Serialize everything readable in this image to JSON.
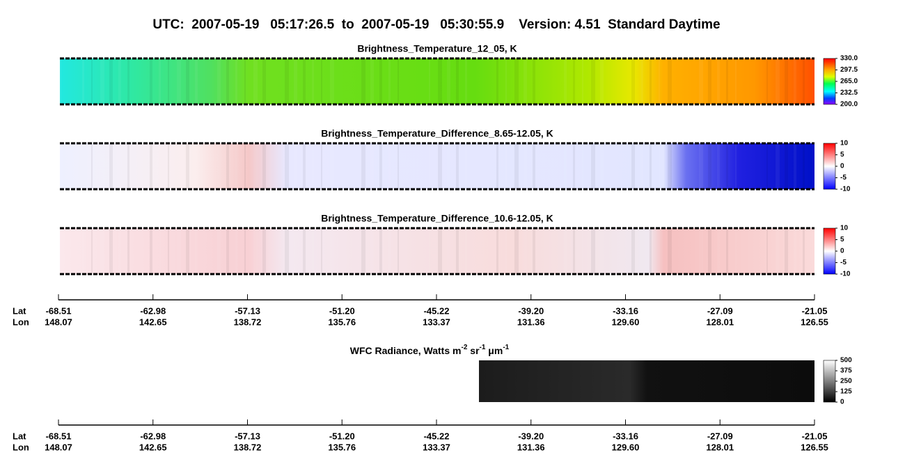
{
  "header": {
    "title": "UTC:  2007-05-19   05:17:26.5  to  2007-05-19   05:30:55.9    Version: 4.51  Standard Daytime"
  },
  "panels": [
    {
      "title": "Brightness_Temperature_12_05, K",
      "colorbar": [
        "330.0",
        "297.5",
        "265.0",
        "232.5",
        "200.0"
      ]
    },
    {
      "title": "Brightness_Temperature_Difference_8.65-12.05, K",
      "colorbar": [
        "10",
        "5",
        "0",
        "-5",
        "-10"
      ]
    },
    {
      "title": "Brightness_Temperature_Difference_10.6-12.05, K",
      "colorbar": [
        "10",
        "5",
        "0",
        "-5",
        "-10"
      ]
    }
  ],
  "wfc": {
    "title_parts": [
      "WFC Radiance, Watts m",
      "-2",
      " sr",
      "-1",
      " μm",
      "-1"
    ],
    "colorbar": [
      "500",
      "375",
      "250",
      "125",
      "0"
    ]
  },
  "axes": [
    {
      "lat_label": "Lat",
      "lon_label": "Lon",
      "lat": [
        "-68.51",
        "-62.98",
        "-57.13",
        "-51.20",
        "-45.22",
        "-39.20",
        "-33.16",
        "-27.09",
        "-21.05"
      ],
      "lon": [
        "148.07",
        "142.65",
        "138.72",
        "135.76",
        "133.37",
        "131.36",
        "129.60",
        "128.01",
        "126.55"
      ]
    },
    {
      "lat_label": "Lat",
      "lon_label": "Lon",
      "lat": [
        "-68.51",
        "-62.98",
        "-57.13",
        "-51.20",
        "-45.22",
        "-39.20",
        "-33.16",
        "-27.09",
        "-21.05"
      ],
      "lon": [
        "148.07",
        "142.65",
        "138.72",
        "135.76",
        "133.37",
        "131.36",
        "129.60",
        "128.01",
        "126.55"
      ]
    }
  ]
}
